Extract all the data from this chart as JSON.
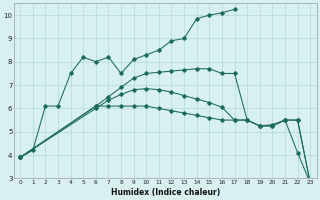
{
  "xlabel": "Humidex (Indice chaleur)",
  "bg_color": "#d8f0f0",
  "grid_color": "#b0d8d8",
  "line_color": "#1a6b5a",
  "ylim": [
    3,
    10.5
  ],
  "yticks": [
    3,
    4,
    5,
    6,
    7,
    8,
    9,
    10
  ],
  "xticks": [
    0,
    1,
    2,
    3,
    4,
    5,
    6,
    7,
    8,
    9,
    10,
    11,
    12,
    13,
    14,
    15,
    16,
    17,
    18,
    19,
    20,
    21,
    22,
    23
  ],
  "line1_x": [
    0,
    1,
    2,
    3,
    4,
    5,
    6,
    7,
    8,
    9,
    10,
    11,
    12,
    13,
    14,
    15,
    16,
    17
  ],
  "line1_y": [
    3.9,
    4.2,
    6.1,
    6.1,
    7.5,
    8.2,
    8.0,
    8.2,
    7.5,
    8.1,
    8.3,
    8.5,
    8.9,
    9.0,
    9.85,
    10.0,
    10.1,
    10.25
  ],
  "line2_x": [
    0,
    6,
    7,
    8,
    9,
    10,
    11,
    12,
    13,
    14,
    15,
    16,
    17,
    18,
    19,
    20,
    21,
    22,
    23
  ],
  "line2_y": [
    3.9,
    6.1,
    6.5,
    6.9,
    7.3,
    7.5,
    7.55,
    7.6,
    7.65,
    7.7,
    7.7,
    7.5,
    7.5,
    5.5,
    5.25,
    5.3,
    5.5,
    4.1,
    2.8
  ],
  "line3_x": [
    0,
    6,
    7,
    8,
    9,
    10,
    11,
    12,
    13,
    14,
    15,
    16,
    17,
    18,
    19,
    20,
    21,
    22,
    23
  ],
  "line3_y": [
    3.9,
    6.0,
    6.35,
    6.6,
    6.8,
    6.85,
    6.8,
    6.7,
    6.55,
    6.4,
    6.25,
    6.05,
    5.5,
    5.5,
    5.25,
    5.25,
    5.5,
    5.5,
    2.8
  ],
  "line4_x": [
    0,
    6,
    7,
    8,
    9,
    10,
    11,
    12,
    13,
    14,
    15,
    16,
    17,
    18,
    19,
    20,
    21,
    22,
    23
  ],
  "line4_y": [
    3.9,
    6.1,
    6.1,
    6.1,
    6.1,
    6.1,
    6.0,
    5.9,
    5.8,
    5.7,
    5.6,
    5.5,
    5.5,
    5.5,
    5.25,
    5.25,
    5.5,
    5.5,
    2.8
  ]
}
